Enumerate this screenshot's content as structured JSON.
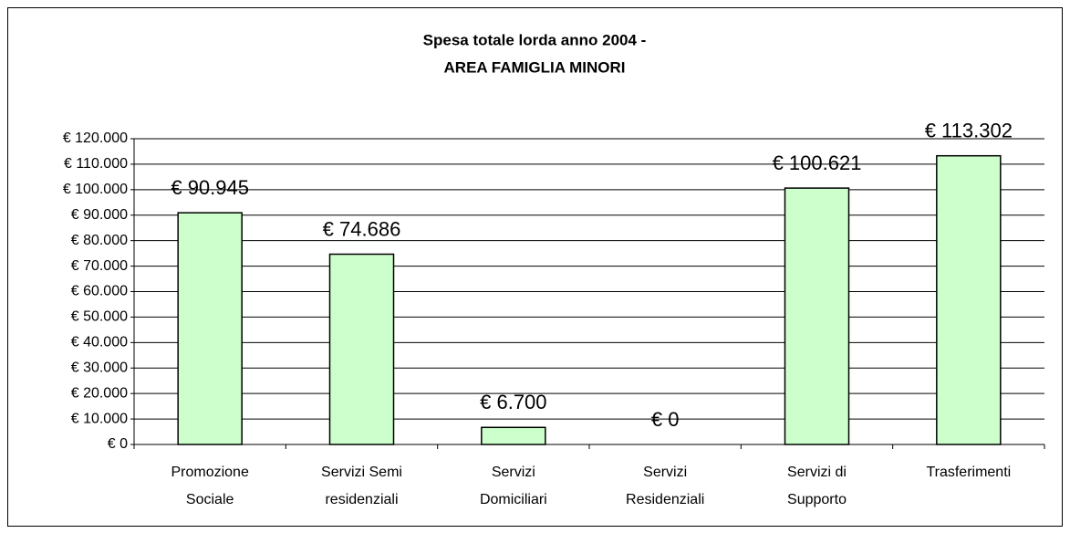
{
  "chart_data": {
    "type": "bar",
    "title": [
      "Spesa totale lorda anno 2004 -",
      "AREA FAMIGLIA MINORI"
    ],
    "categories": [
      [
        "Promozione",
        "Sociale"
      ],
      [
        "Servizi Semi",
        "residenziali"
      ],
      [
        "Servizi",
        "Domiciliari"
      ],
      [
        "Servizi",
        "Residenziali"
      ],
      [
        "Servizi di",
        "Supporto"
      ],
      [
        "Trasferimenti"
      ]
    ],
    "values": [
      90945,
      74686,
      6700,
      0,
      100621,
      113302
    ],
    "value_labels": [
      "€ 90.945",
      "€ 74.686",
      "€ 6.700",
      "€ 0",
      "€ 100.621",
      "€ 113.302"
    ],
    "color": "#ccffcc",
    "ylim": [
      0,
      120000
    ],
    "yticks": [
      {
        "value": 0,
        "label": "€ 0"
      },
      {
        "value": 10000,
        "label": "€ 10.000"
      },
      {
        "value": 20000,
        "label": "€ 20.000"
      },
      {
        "value": 30000,
        "label": "€ 30.000"
      },
      {
        "value": 40000,
        "label": "€ 40.000"
      },
      {
        "value": 50000,
        "label": "€ 50.000"
      },
      {
        "value": 60000,
        "label": "€ 60.000"
      },
      {
        "value": 70000,
        "label": "€ 70.000"
      },
      {
        "value": 80000,
        "label": "€ 80.000"
      },
      {
        "value": 90000,
        "label": "€ 90.000"
      },
      {
        "value": 100000,
        "label": "€ 100.000"
      },
      {
        "value": 110000,
        "label": "€ 110.000"
      },
      {
        "value": 120000,
        "label": "€ 120.000"
      }
    ],
    "grid": true
  }
}
